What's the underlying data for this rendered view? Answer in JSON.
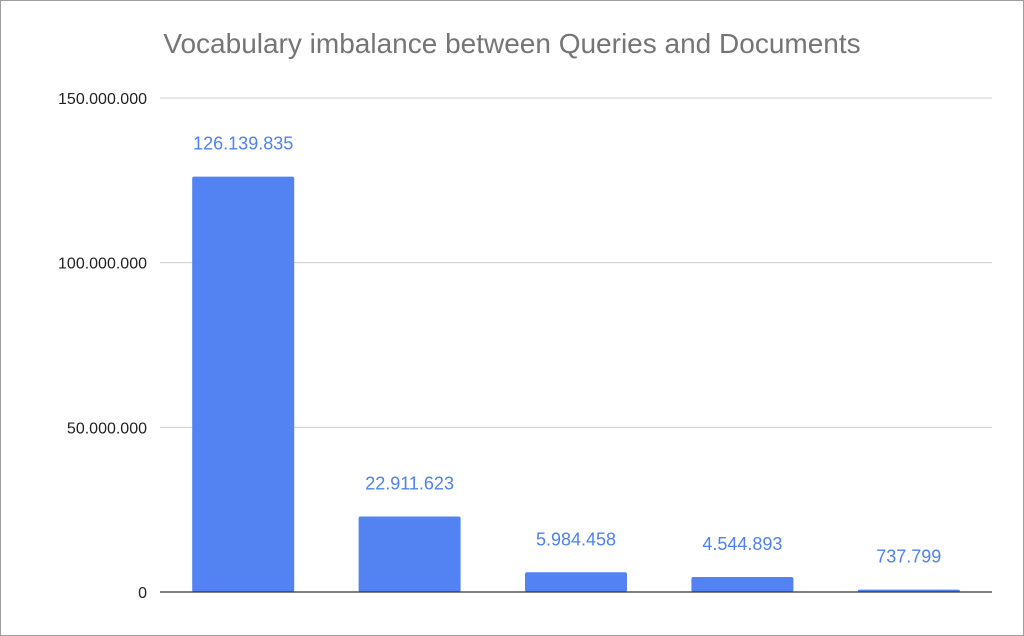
{
  "chart_data": {
    "type": "bar",
    "title": "Vocabulary imbalance between Queries and Documents",
    "categories": [
      "",
      "",
      "",
      "",
      ""
    ],
    "values": [
      126139835,
      22911623,
      5984458,
      4544893,
      737799
    ],
    "value_labels": [
      "126.139.835",
      "22.911.623",
      "5.984.458",
      "4.544.893",
      "737.799"
    ],
    "yticks": [
      0,
      50000000,
      100000000,
      150000000
    ],
    "ytick_labels": [
      "0",
      "50.000.000",
      "100.000.000",
      "150.000.000"
    ],
    "ylim": [
      0,
      150000000
    ],
    "xlabel": "",
    "ylabel": "",
    "grid": true,
    "legend": "none",
    "bar_color": "#5383f2",
    "label_color": "#4f81f0",
    "gridline_color": "#cccccc"
  }
}
